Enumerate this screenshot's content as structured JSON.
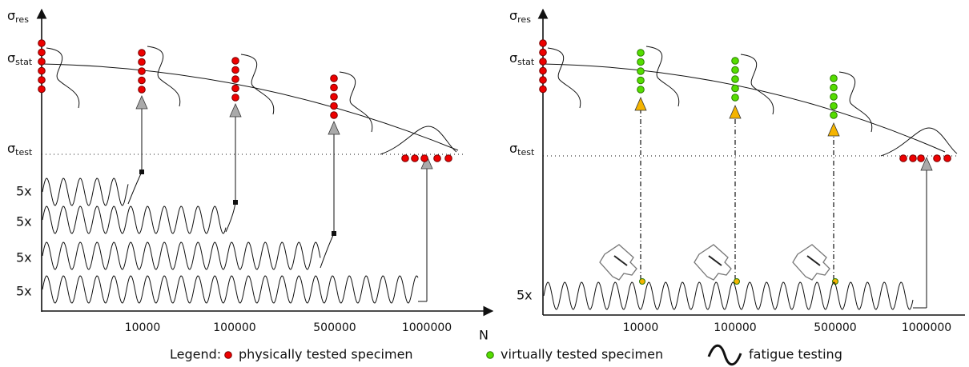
{
  "left_panel": {
    "y_axis_label": {
      "symbol": "σ",
      "sub": "res"
    },
    "stat_label": {
      "symbol": "σ",
      "sub": "stat"
    },
    "test_label": {
      "symbol": "σ",
      "sub": "test"
    },
    "x_axis_label": "N",
    "cycle_labels": [
      "10000",
      "100000",
      "500000",
      "1000000"
    ],
    "repeat_labels": [
      "5x",
      "5x",
      "5x",
      "5x"
    ]
  },
  "right_panel": {
    "y_axis_label": {
      "symbol": "σ",
      "sub": "res"
    },
    "stat_label": {
      "symbol": "σ",
      "sub": "stat"
    },
    "test_label": {
      "symbol": "σ",
      "sub": "test"
    },
    "cycle_labels": [
      "10000",
      "100000",
      "500000",
      "1000000"
    ],
    "repeat_labels": [
      "5x"
    ]
  },
  "legend": {
    "title": "Legend:",
    "items": [
      "physically tested specimen",
      "virtually tested specimen",
      "fatigue testing"
    ]
  }
}
